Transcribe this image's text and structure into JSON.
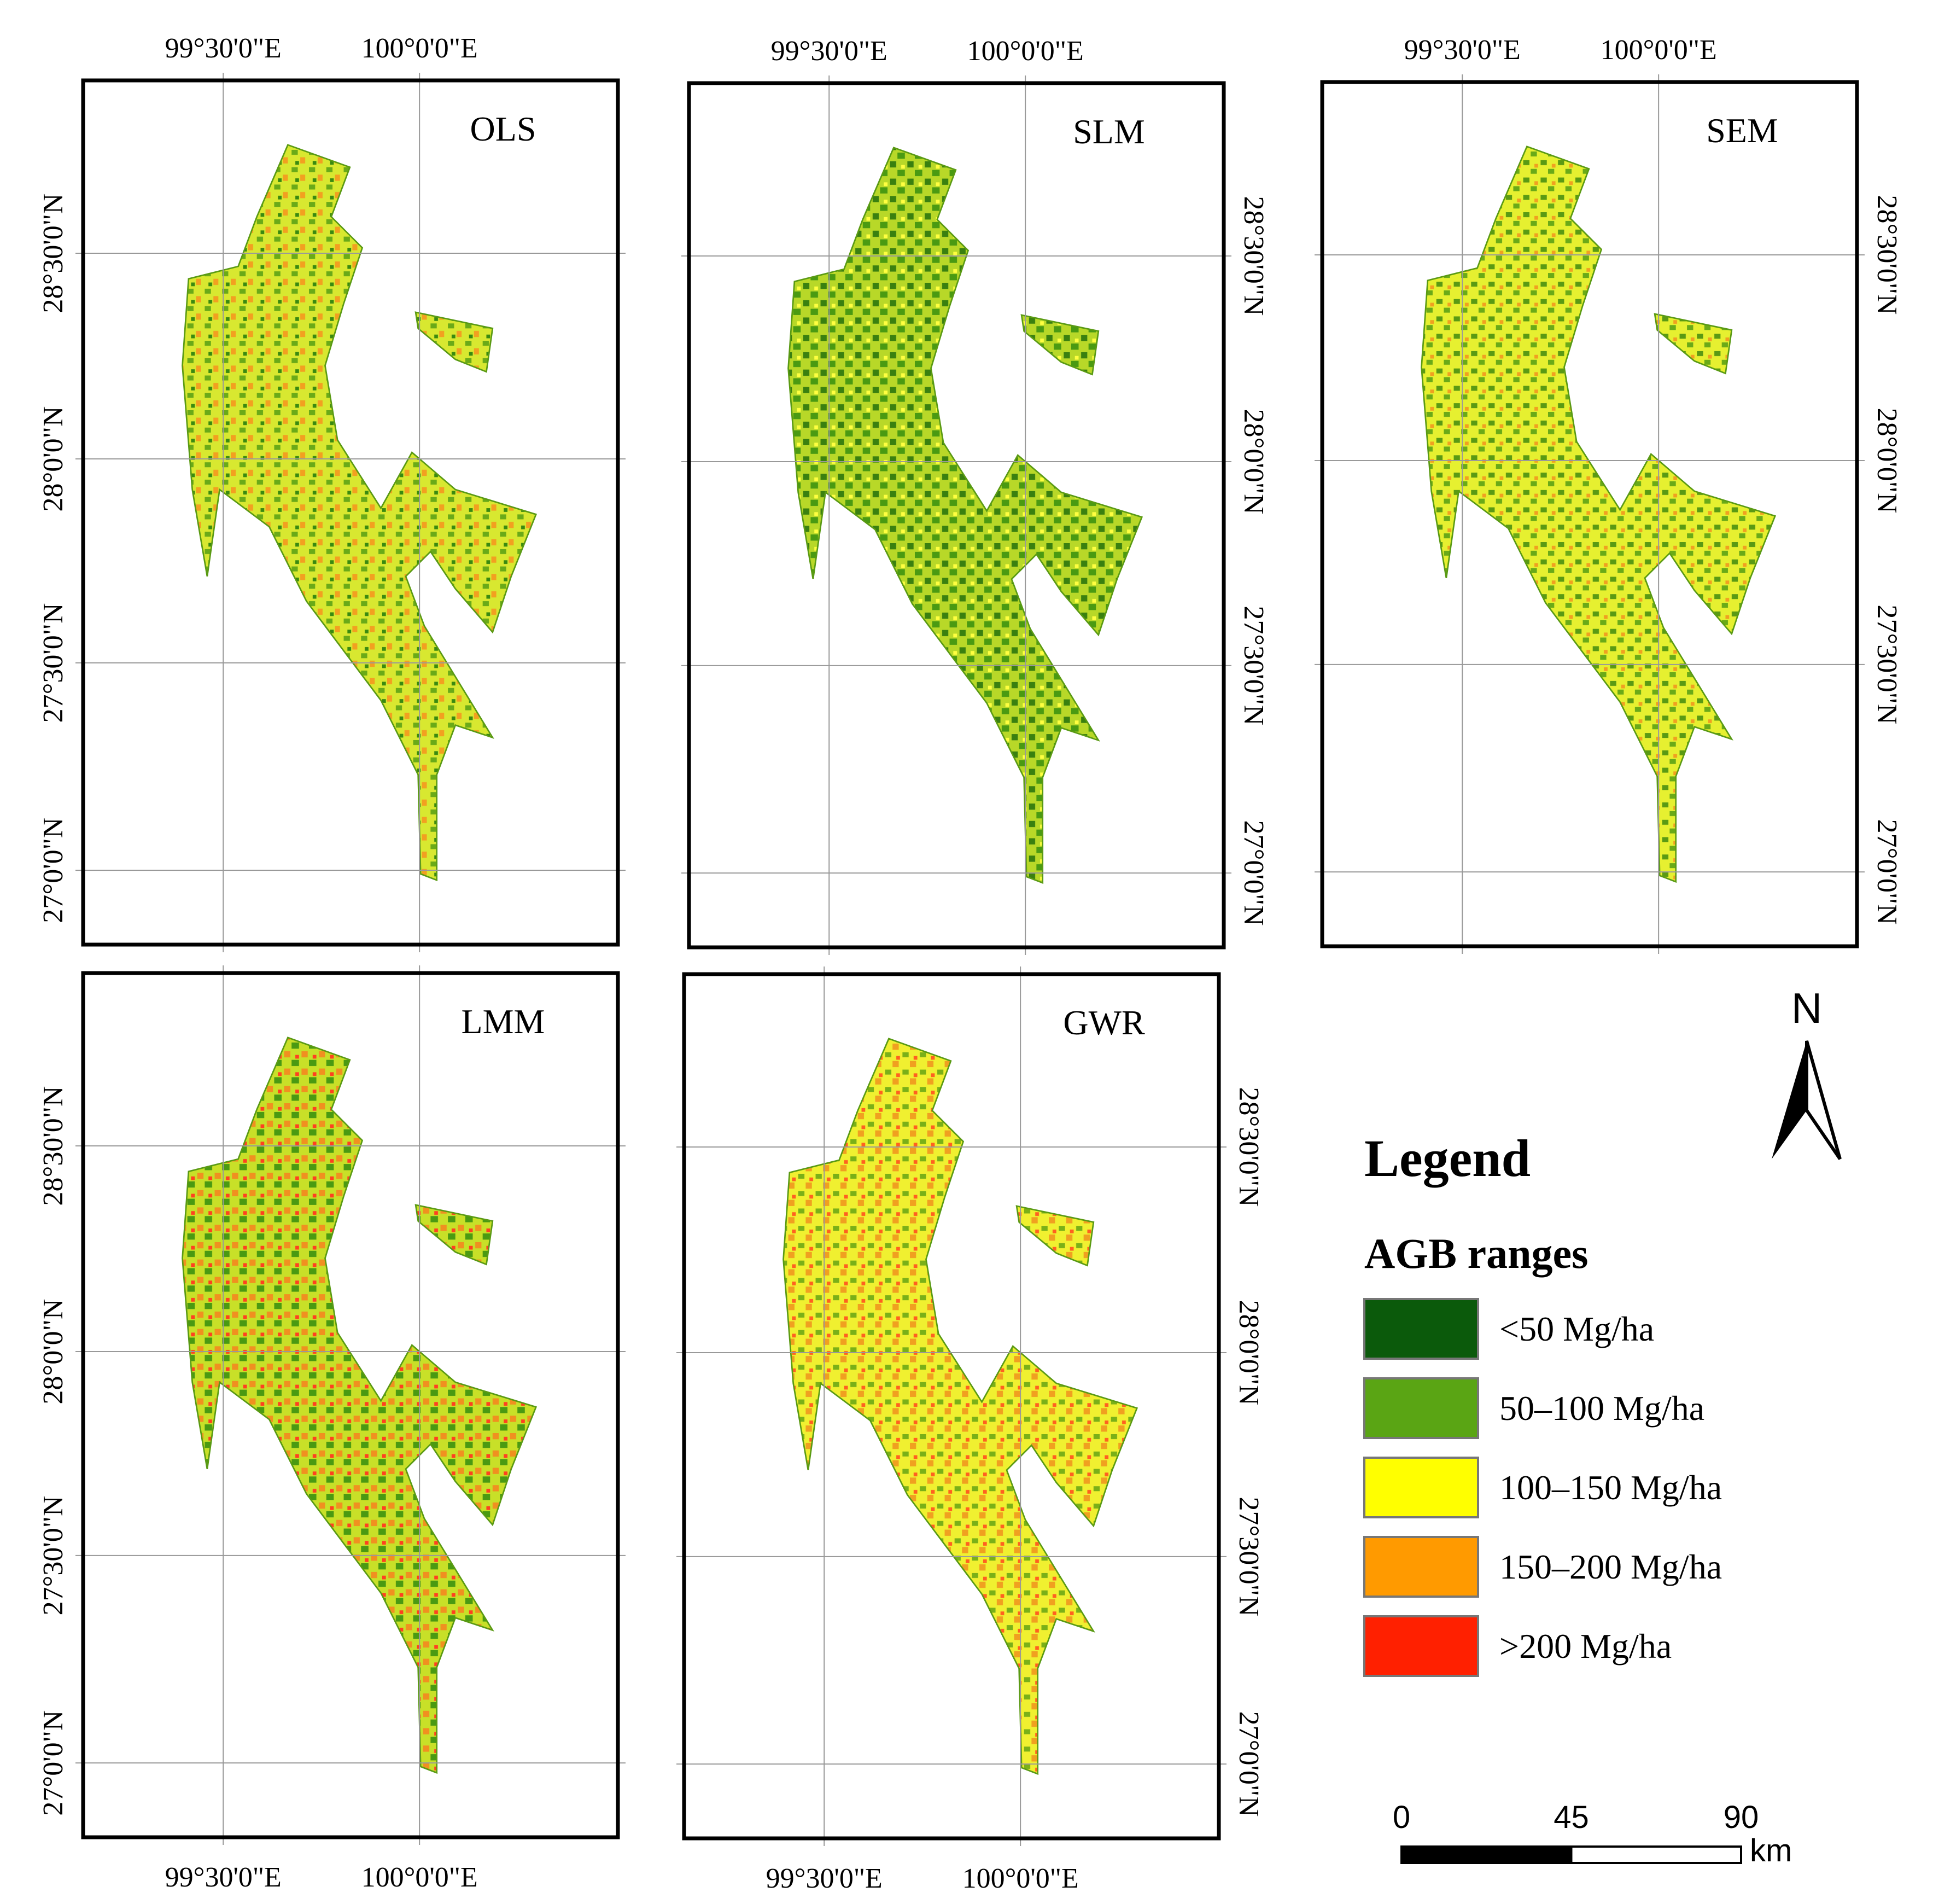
{
  "panels": [
    {
      "title": "OLS"
    },
    {
      "title": "SLM"
    },
    {
      "title": "SEM"
    },
    {
      "title": "LMM"
    },
    {
      "title": "GWR"
    }
  ],
  "graticule": {
    "lon_labels": [
      "99°30'0\"E",
      "100°0'0\"E"
    ],
    "lat_labels": [
      "28°30'0\"N",
      "28°0'0\"N",
      "27°30'0\"N",
      "27°0'0\"N"
    ]
  },
  "north_arrow": {
    "label": "N"
  },
  "legend": {
    "title": "Legend",
    "subtitle": "AGB ranges",
    "items": [
      {
        "label": "<50 Mg/ha",
        "color": "#0b5a0b"
      },
      {
        "label": "50–100 Mg/ha",
        "color": "#5aa514"
      },
      {
        "label": "100–150 Mg/ha",
        "color": "#ffff00"
      },
      {
        "label": "150–200 Mg/ha",
        "color": "#ff9a00"
      },
      {
        "label": ">200 Mg/ha",
        "color": "#ff2000"
      }
    ]
  },
  "scale_bar": {
    "ticks": [
      0,
      45,
      90
    ],
    "unit": "km"
  }
}
